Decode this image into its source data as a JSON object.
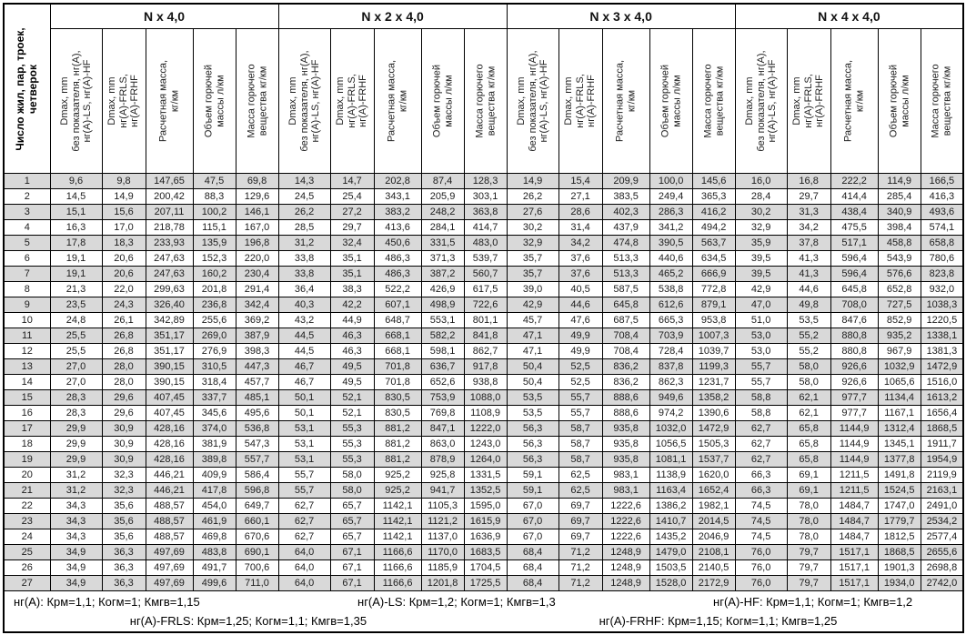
{
  "table": {
    "row_header": "Число жил, пар, троек,\nчетверок",
    "groups": [
      "N x 4,0",
      "N x 2 x 4,0",
      "N x 3 x 4,0",
      "N x 4 x 4,0"
    ],
    "sub_headers": [
      "Dmax, mm\nбез показателя, нг(А),\nнг(А)-LS, нг(А)-HF",
      "Dmax, mm\nнг(А)-FRLS,\nнг(А)-FRHF",
      "Расчетная масса,\nкг/км",
      "Объем горючей\nмассы л/км",
      "Масса горючего\nвещества кг/км"
    ],
    "rows": [
      {
        "n": "1",
        "v": [
          "9,6",
          "9,8",
          "147,65",
          "47,5",
          "69,8",
          "14,3",
          "14,7",
          "202,8",
          "87,4",
          "128,3",
          "14,9",
          "15,4",
          "209,9",
          "100,0",
          "145,6",
          "16,0",
          "16,8",
          "222,2",
          "114,9",
          "166,5"
        ]
      },
      {
        "n": "2",
        "v": [
          "14,5",
          "14,9",
          "200,42",
          "88,3",
          "129,6",
          "24,5",
          "25,4",
          "343,1",
          "205,9",
          "303,1",
          "26,2",
          "27,1",
          "383,5",
          "249,4",
          "365,3",
          "28,4",
          "29,7",
          "414,4",
          "285,4",
          "416,3"
        ]
      },
      {
        "n": "3",
        "v": [
          "15,1",
          "15,6",
          "207,11",
          "100,2",
          "146,1",
          "26,2",
          "27,2",
          "383,2",
          "248,2",
          "363,8",
          "27,6",
          "28,6",
          "402,3",
          "286,3",
          "416,2",
          "30,2",
          "31,3",
          "438,4",
          "340,9",
          "493,6"
        ]
      },
      {
        "n": "4",
        "v": [
          "16,3",
          "17,0",
          "218,78",
          "115,1",
          "167,0",
          "28,5",
          "29,7",
          "413,6",
          "284,1",
          "414,7",
          "30,2",
          "31,4",
          "437,9",
          "341,2",
          "494,2",
          "32,9",
          "34,2",
          "475,5",
          "398,4",
          "574,1"
        ]
      },
      {
        "n": "5",
        "v": [
          "17,8",
          "18,3",
          "233,93",
          "135,9",
          "196,8",
          "31,2",
          "32,4",
          "450,6",
          "331,5",
          "483,0",
          "32,9",
          "34,2",
          "474,8",
          "390,5",
          "563,7",
          "35,9",
          "37,8",
          "517,1",
          "458,8",
          "658,8"
        ]
      },
      {
        "n": "6",
        "v": [
          "19,1",
          "20,6",
          "247,63",
          "152,3",
          "220,0",
          "33,8",
          "35,1",
          "486,3",
          "371,3",
          "539,7",
          "35,7",
          "37,6",
          "513,3",
          "440,6",
          "634,5",
          "39,5",
          "41,3",
          "596,4",
          "543,9",
          "780,6"
        ]
      },
      {
        "n": "7",
        "v": [
          "19,1",
          "20,6",
          "247,63",
          "160,2",
          "230,4",
          "33,8",
          "35,1",
          "486,3",
          "387,2",
          "560,7",
          "35,7",
          "37,6",
          "513,3",
          "465,2",
          "666,9",
          "39,5",
          "41,3",
          "596,4",
          "576,6",
          "823,8"
        ]
      },
      {
        "n": "8",
        "v": [
          "21,3",
          "22,0",
          "299,63",
          "201,8",
          "291,4",
          "36,4",
          "38,3",
          "522,2",
          "426,9",
          "617,5",
          "39,0",
          "40,5",
          "587,5",
          "538,8",
          "772,8",
          "42,9",
          "44,6",
          "645,8",
          "652,8",
          "932,0"
        ]
      },
      {
        "n": "9",
        "v": [
          "23,5",
          "24,3",
          "326,40",
          "236,8",
          "342,4",
          "40,3",
          "42,2",
          "607,1",
          "498,9",
          "722,6",
          "42,9",
          "44,6",
          "645,8",
          "612,6",
          "879,1",
          "47,0",
          "49,8",
          "708,0",
          "727,5",
          "1038,3"
        ]
      },
      {
        "n": "10",
        "v": [
          "24,8",
          "26,1",
          "342,89",
          "255,6",
          "369,2",
          "43,2",
          "44,9",
          "648,7",
          "553,1",
          "801,1",
          "45,7",
          "47,6",
          "687,5",
          "665,3",
          "953,8",
          "51,0",
          "53,5",
          "847,6",
          "852,9",
          "1220,5"
        ]
      },
      {
        "n": "11",
        "v": [
          "25,5",
          "26,8",
          "351,17",
          "269,0",
          "387,9",
          "44,5",
          "46,3",
          "668,1",
          "582,2",
          "841,8",
          "47,1",
          "49,9",
          "708,4",
          "703,9",
          "1007,3",
          "53,0",
          "55,2",
          "880,8",
          "935,2",
          "1338,1"
        ]
      },
      {
        "n": "12",
        "v": [
          "25,5",
          "26,8",
          "351,17",
          "276,9",
          "398,3",
          "44,5",
          "46,3",
          "668,1",
          "598,1",
          "862,7",
          "47,1",
          "49,9",
          "708,4",
          "728,4",
          "1039,7",
          "53,0",
          "55,2",
          "880,8",
          "967,9",
          "1381,3"
        ]
      },
      {
        "n": "13",
        "v": [
          "27,0",
          "28,0",
          "390,15",
          "310,5",
          "447,3",
          "46,7",
          "49,5",
          "701,8",
          "636,7",
          "917,8",
          "50,4",
          "52,5",
          "836,2",
          "837,8",
          "1199,3",
          "55,7",
          "58,0",
          "926,6",
          "1032,9",
          "1472,9"
        ]
      },
      {
        "n": "14",
        "v": [
          "27,0",
          "28,0",
          "390,15",
          "318,4",
          "457,7",
          "46,7",
          "49,5",
          "701,8",
          "652,6",
          "938,8",
          "50,4",
          "52,5",
          "836,2",
          "862,3",
          "1231,7",
          "55,7",
          "58,0",
          "926,6",
          "1065,6",
          "1516,0"
        ]
      },
      {
        "n": "15",
        "v": [
          "28,3",
          "29,6",
          "407,45",
          "337,7",
          "485,1",
          "50,1",
          "52,1",
          "830,5",
          "753,9",
          "1088,0",
          "53,5",
          "55,7",
          "888,6",
          "949,6",
          "1358,2",
          "58,8",
          "62,1",
          "977,7",
          "1134,4",
          "1613,2"
        ]
      },
      {
        "n": "16",
        "v": [
          "28,3",
          "29,6",
          "407,45",
          "345,6",
          "495,6",
          "50,1",
          "52,1",
          "830,5",
          "769,8",
          "1108,9",
          "53,5",
          "55,7",
          "888,6",
          "974,2",
          "1390,6",
          "58,8",
          "62,1",
          "977,7",
          "1167,1",
          "1656,4"
        ]
      },
      {
        "n": "17",
        "v": [
          "29,9",
          "30,9",
          "428,16",
          "374,0",
          "536,8",
          "53,1",
          "55,3",
          "881,2",
          "847,1",
          "1222,0",
          "56,3",
          "58,7",
          "935,8",
          "1032,0",
          "1472,9",
          "62,7",
          "65,8",
          "1144,9",
          "1312,4",
          "1868,5"
        ]
      },
      {
        "n": "18",
        "v": [
          "29,9",
          "30,9",
          "428,16",
          "381,9",
          "547,3",
          "53,1",
          "55,3",
          "881,2",
          "863,0",
          "1243,0",
          "56,3",
          "58,7",
          "935,8",
          "1056,5",
          "1505,3",
          "62,7",
          "65,8",
          "1144,9",
          "1345,1",
          "1911,7"
        ]
      },
      {
        "n": "19",
        "v": [
          "29,9",
          "30,9",
          "428,16",
          "389,8",
          "557,7",
          "53,1",
          "55,3",
          "881,2",
          "878,9",
          "1264,0",
          "56,3",
          "58,7",
          "935,8",
          "1081,1",
          "1537,7",
          "62,7",
          "65,8",
          "1144,9",
          "1377,8",
          "1954,9"
        ]
      },
      {
        "n": "20",
        "v": [
          "31,2",
          "32,3",
          "446,21",
          "409,9",
          "586,4",
          "55,7",
          "58,0",
          "925,2",
          "925,8",
          "1331,5",
          "59,1",
          "62,5",
          "983,1",
          "1138,9",
          "1620,0",
          "66,3",
          "69,1",
          "1211,5",
          "1491,8",
          "2119,9"
        ]
      },
      {
        "n": "21",
        "v": [
          "31,2",
          "32,3",
          "446,21",
          "417,8",
          "596,8",
          "55,7",
          "58,0",
          "925,2",
          "941,7",
          "1352,5",
          "59,1",
          "62,5",
          "983,1",
          "1163,4",
          "1652,4",
          "66,3",
          "69,1",
          "1211,5",
          "1524,5",
          "2163,1"
        ]
      },
      {
        "n": "22",
        "v": [
          "34,3",
          "35,6",
          "488,57",
          "454,0",
          "649,7",
          "62,7",
          "65,7",
          "1142,1",
          "1105,3",
          "1595,0",
          "67,0",
          "69,7",
          "1222,6",
          "1386,2",
          "1982,1",
          "74,5",
          "78,0",
          "1484,7",
          "1747,0",
          "2491,0"
        ]
      },
      {
        "n": "23",
        "v": [
          "34,3",
          "35,6",
          "488,57",
          "461,9",
          "660,1",
          "62,7",
          "65,7",
          "1142,1",
          "1121,2",
          "1615,9",
          "67,0",
          "69,7",
          "1222,6",
          "1410,7",
          "2014,5",
          "74,5",
          "78,0",
          "1484,7",
          "1779,7",
          "2534,2"
        ]
      },
      {
        "n": "24",
        "v": [
          "34,3",
          "35,6",
          "488,57",
          "469,8",
          "670,6",
          "62,7",
          "65,7",
          "1142,1",
          "1137,0",
          "1636,9",
          "67,0",
          "69,7",
          "1222,6",
          "1435,2",
          "2046,9",
          "74,5",
          "78,0",
          "1484,7",
          "1812,5",
          "2577,4"
        ]
      },
      {
        "n": "25",
        "v": [
          "34,9",
          "36,3",
          "497,69",
          "483,8",
          "690,1",
          "64,0",
          "67,1",
          "1166,6",
          "1170,0",
          "1683,5",
          "68,4",
          "71,2",
          "1248,9",
          "1479,0",
          "2108,1",
          "76,0",
          "79,7",
          "1517,1",
          "1868,5",
          "2655,6"
        ]
      },
      {
        "n": "26",
        "v": [
          "34,9",
          "36,3",
          "497,69",
          "491,7",
          "700,6",
          "64,0",
          "67,1",
          "1166,6",
          "1185,9",
          "1704,5",
          "68,4",
          "71,2",
          "1248,9",
          "1503,5",
          "2140,5",
          "76,0",
          "79,7",
          "1517,1",
          "1901,3",
          "2698,8"
        ]
      },
      {
        "n": "27",
        "v": [
          "34,9",
          "36,3",
          "497,69",
          "499,6",
          "711,0",
          "64,0",
          "67,1",
          "1166,6",
          "1201,8",
          "1725,5",
          "68,4",
          "71,2",
          "1248,9",
          "1528,0",
          "2172,9",
          "76,0",
          "79,7",
          "1517,1",
          "1934,0",
          "2742,0"
        ]
      }
    ],
    "footer_line1": [
      "нг(А): Крм=1,1;  Когм=1;  Кмгв=1,15",
      "нг(А)-LS: Крм=1,2;  Когм=1;  Кмгв=1,3",
      "нг(А)-HF: Крм=1,1;  Когм=1;  Кмгв=1,2"
    ],
    "footer_line2": [
      "нг(А)-FRLS: Крм=1,25;  Когм=1,1;  Кмгв=1,35",
      "нг(А)-FRHF: Крм=1,15;  Когм=1,1;  Кмгв=1,25"
    ]
  },
  "colors": {
    "row_shade": "#d9d9d9",
    "border": "#000000",
    "background": "#ffffff"
  }
}
